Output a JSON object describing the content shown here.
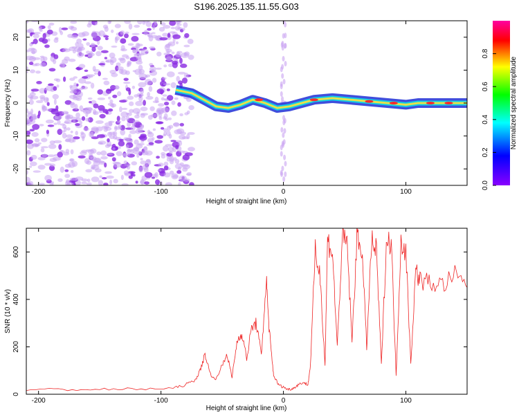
{
  "chart_data": [
    {
      "type": "heatmap",
      "title": "S196.2025.135.11.55.G03",
      "xlabel": "Height of straight line (km)",
      "ylabel": "Frequency (Hz)",
      "xlim": [
        -210,
        150
      ],
      "ylim": [
        -25,
        25
      ],
      "x_ticks": [
        "-200",
        "-100",
        "0",
        "100"
      ],
      "y_ticks": [
        "-20",
        "-10",
        "0",
        "10",
        "20"
      ],
      "colorbar": {
        "label": "Normalized spectral amplitude",
        "range": [
          0,
          1
        ],
        "ticks": [
          "0.0",
          "0.2",
          "0.4",
          "0.6",
          "0.8"
        ],
        "colors": [
          "#8a00ff",
          "#0000ff",
          "#00ffff",
          "#00ff00",
          "#ffff00",
          "#ff0000",
          "#ff00a0"
        ]
      },
      "signal_track": {
        "description_points_x": [
          -88,
          -75,
          -65,
          -55,
          -45,
          -35,
          -25,
          -15,
          -5,
          5,
          15,
          25,
          40,
          55,
          70,
          85,
          100,
          110,
          150
        ],
        "frequency_hz": [
          4,
          3,
          1,
          -1,
          -1.5,
          -0.5,
          1,
          0,
          -1.5,
          -1,
          0,
          1,
          1.5,
          1,
          0.5,
          0,
          -0.5,
          0,
          0
        ]
      },
      "noise_region_x": [
        -210,
        -75
      ]
    },
    {
      "type": "line",
      "title": "",
      "xlabel": "Height of straight line (km)",
      "ylabel": "SNR (10 * v/v)",
      "xlim": [
        -210,
        150
      ],
      "ylim": [
        0,
        700
      ],
      "x_ticks": [
        "-200",
        "-100",
        "0",
        "100"
      ],
      "y_ticks": [
        "0",
        "200",
        "400",
        "600"
      ],
      "series": [
        {
          "color": "#ee2222",
          "x": [
            -210,
            -180,
            -150,
            -120,
            -90,
            -80,
            -72,
            -68,
            -64,
            -60,
            -56,
            -50,
            -46,
            -42,
            -38,
            -34,
            -30,
            -26,
            -22,
            -18,
            -14,
            -12,
            -10,
            -8,
            -4,
            0,
            4,
            8,
            12,
            16,
            20,
            22,
            26,
            30,
            34,
            36,
            40,
            44,
            48,
            52,
            56,
            60,
            64,
            68,
            72,
            76,
            80,
            84,
            88,
            92,
            96,
            100,
            104,
            108,
            112,
            120,
            130,
            140,
            150
          ],
          "y": [
            20,
            20,
            20,
            22,
            25,
            40,
            60,
            100,
            170,
            90,
            60,
            120,
            170,
            70,
            220,
            260,
            150,
            280,
            300,
            160,
            490,
            300,
            180,
            80,
            40,
            30,
            20,
            25,
            40,
            50,
            40,
            120,
            600,
            500,
            120,
            650,
            600,
            200,
            650,
            640,
            220,
            660,
            620,
            200,
            640,
            600,
            120,
            640,
            650,
            80,
            650,
            600,
            130,
            520,
            480,
            470,
            460,
            500,
            450
          ]
        }
      ]
    }
  ]
}
